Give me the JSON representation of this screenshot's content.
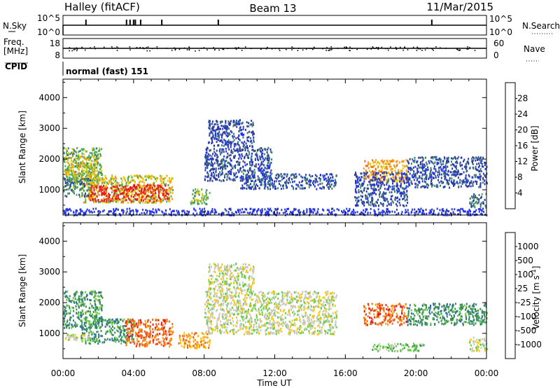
{
  "header": {
    "station": "Halley (fitACF)",
    "beam": "Beam 13",
    "date": "11/Mar/2015"
  },
  "strips": {
    "nsky_label": "N.Sky",
    "nsearch_label": "N.Search",
    "n_ticks": [
      "10^5",
      "10^0"
    ],
    "freq_label_1": "Freq.",
    "freq_label_2": "[MHz]",
    "freq_ticks": [
      "18",
      "8"
    ],
    "nave_label": "Nave",
    "nave_ticks": [
      "60",
      "0"
    ],
    "cpid_label": "CPID",
    "cpid_value": "normal (fast) 151"
  },
  "chart_data": [
    {
      "type": "heatmap",
      "name": "power",
      "ylabel": "Slant Range [km]",
      "xlabel": "Time UT",
      "x_ticks": [
        "00:00",
        "04:00",
        "08:00",
        "12:00",
        "16:00",
        "20:00",
        "00:00"
      ],
      "x_range_hours": [
        0,
        24
      ],
      "y_ticks": [
        1000,
        2000,
        3000,
        4000
      ],
      "y_range_km": [
        180,
        4600
      ],
      "colorbar": {
        "label": "Power [dB]",
        "ticks": [
          "4",
          "8",
          "12",
          "16",
          "20",
          "24",
          "28"
        ],
        "colors": [
          "#2233ee",
          "#2d3d9e",
          "#3a7e6f",
          "#55aa55",
          "#e6c900",
          "#f39a18",
          "#f06418",
          "#e61818"
        ]
      },
      "regions": [
        {
          "t0": 0.0,
          "t1": 2.2,
          "r0": 1100,
          "r1": 2400,
          "level": 3
        },
        {
          "t0": 0.1,
          "t1": 1.9,
          "r0": 1300,
          "r1": 2100,
          "level": 4
        },
        {
          "t0": 1.0,
          "t1": 6.2,
          "r0": 600,
          "r1": 1500,
          "level": 4
        },
        {
          "t0": 1.4,
          "t1": 6.0,
          "r0": 650,
          "r1": 1200,
          "level": 7
        },
        {
          "t0": 0.0,
          "t1": 1.5,
          "r0": 800,
          "r1": 1400,
          "level": 2
        },
        {
          "t0": 8.0,
          "t1": 11.8,
          "r0": 1300,
          "r1": 2400,
          "level": 1
        },
        {
          "t0": 10.0,
          "t1": 15.5,
          "r0": 1050,
          "r1": 1550,
          "level": 1
        },
        {
          "t0": 8.2,
          "t1": 10.8,
          "r0": 2400,
          "r1": 3300,
          "level": 1
        },
        {
          "t0": 7.2,
          "t1": 8.3,
          "r0": 550,
          "r1": 1050,
          "level": 3
        },
        {
          "t0": 17.0,
          "t1": 19.5,
          "r0": 1300,
          "r1": 2000,
          "level": 5
        },
        {
          "t0": 16.5,
          "t1": 19.5,
          "r0": 500,
          "r1": 1600,
          "level": 1
        },
        {
          "t0": 19.5,
          "t1": 24.0,
          "r0": 1100,
          "r1": 2100,
          "level": 1
        },
        {
          "t0": 23.0,
          "t1": 24.0,
          "r0": 450,
          "r1": 900,
          "level": 2
        },
        {
          "t0": 0.0,
          "t1": 24.0,
          "r0": 200,
          "r1": 420,
          "level": 0
        }
      ]
    },
    {
      "type": "heatmap",
      "name": "velocity",
      "ylabel": "Slant Range [km]",
      "xlabel": "Time UT",
      "x_ticks": [
        "00:00",
        "04:00",
        "08:00",
        "12:00",
        "16:00",
        "20:00",
        "00:00"
      ],
      "x_range_hours": [
        0,
        24
      ],
      "y_ticks": [
        1000,
        2000,
        3000,
        4000
      ],
      "y_range_km": [
        180,
        4600
      ],
      "colorbar": {
        "label": "Velocity [m s^-1]",
        "ticks": [
          "1000",
          "500",
          "100",
          "25",
          "-25",
          "-100",
          "-500",
          "-1000"
        ],
        "colors": [
          "#2233bb",
          "#2d6e9e",
          "#3a8f4f",
          "#66cc44",
          "#c8c8c0",
          "#ffc800",
          "#f89a10",
          "#f06418",
          "#e61818"
        ]
      },
      "regions": [
        {
          "t0": 0.0,
          "t1": 2.2,
          "r0": 1200,
          "r1": 2400,
          "level": 2
        },
        {
          "t0": 1.0,
          "t1": 4.0,
          "r0": 700,
          "r1": 1500,
          "level": 2
        },
        {
          "t0": 3.5,
          "t1": 6.2,
          "r0": 600,
          "r1": 1500,
          "level": 7
        },
        {
          "t0": 0.0,
          "t1": 1.5,
          "r0": 800,
          "r1": 1000,
          "level": 4
        },
        {
          "t0": 8.0,
          "t1": 15.5,
          "r0": 1000,
          "r1": 2400,
          "level": 4
        },
        {
          "t0": 8.2,
          "t1": 10.8,
          "r0": 2400,
          "r1": 3300,
          "level": 4
        },
        {
          "t0": 6.5,
          "t1": 8.3,
          "r0": 550,
          "r1": 1050,
          "level": 6
        },
        {
          "t0": 17.0,
          "t1": 19.5,
          "r0": 1300,
          "r1": 2000,
          "level": 7
        },
        {
          "t0": 19.5,
          "t1": 24.0,
          "r0": 1300,
          "r1": 2000,
          "level": 2
        },
        {
          "t0": 23.0,
          "t1": 24.0,
          "r0": 450,
          "r1": 900,
          "level": 4
        },
        {
          "t0": 17.5,
          "t1": 20.5,
          "r0": 450,
          "r1": 700,
          "level": 3
        }
      ]
    }
  ]
}
